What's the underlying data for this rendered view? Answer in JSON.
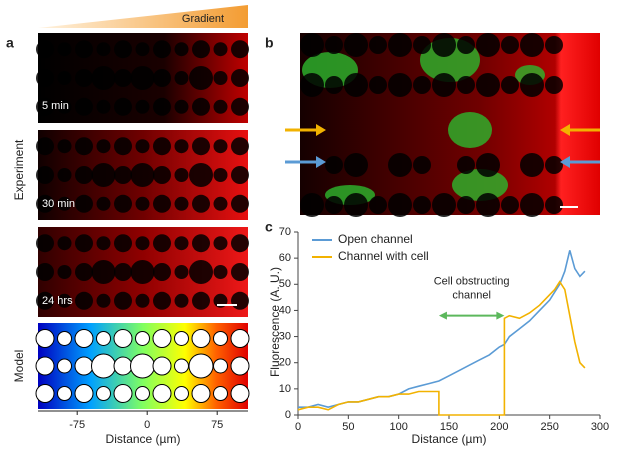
{
  "figure": {
    "panel_a": {
      "label": "a",
      "gradient_label": "Gradient",
      "experiment_label": "Experiment",
      "times": [
        "5 min",
        "30 min",
        "24 hrs"
      ],
      "model_label": "Model",
      "axis": {
        "xlim": [
          -117,
          108
        ],
        "xticks": [
          -75,
          0,
          75
        ],
        "xlabel": "Distance (µm)"
      }
    },
    "panel_b": {
      "label": "b"
    },
    "panel_c": {
      "label": "c"
    }
  },
  "chart_data": {
    "type": "line",
    "xlabel": "Distance (µm)",
    "ylabel": "Fluorescence (A. U.)",
    "x": [
      0,
      10,
      20,
      30,
      40,
      50,
      60,
      70,
      80,
      90,
      100,
      110,
      120,
      130,
      140,
      140,
      150,
      160,
      170,
      180,
      190,
      200,
      205,
      205,
      210,
      220,
      230,
      240,
      250,
      255,
      260,
      265,
      270,
      275,
      280,
      285
    ],
    "series": [
      {
        "name": "Open channel",
        "color": "#5b9bd5",
        "values": [
          3,
          3,
          4,
          3,
          4,
          5,
          5,
          6,
          7,
          7,
          8,
          10,
          11,
          12,
          13,
          13,
          15,
          17,
          19,
          21,
          23,
          26,
          27,
          27,
          30,
          33,
          36,
          40,
          44,
          47,
          50,
          55,
          63,
          56,
          53,
          55
        ]
      },
      {
        "name": "Channel with cell",
        "color": "#f2b200",
        "values": [
          2,
          3,
          3,
          2,
          4,
          5,
          5,
          6,
          7,
          7,
          8,
          8,
          9,
          9,
          9,
          0,
          0,
          0,
          0,
          0,
          0,
          0,
          0,
          37,
          38,
          37,
          39,
          42,
          46,
          48,
          51,
          48,
          38,
          28,
          20,
          18
        ]
      }
    ],
    "xlim": [
      0,
      300
    ],
    "xticks": [
      0,
      50,
      100,
      150,
      200,
      250,
      300
    ],
    "ylim": [
      0,
      70
    ],
    "yticks": [
      0,
      10,
      20,
      30,
      40,
      50,
      60,
      70
    ],
    "annotation": {
      "lines": [
        "Cell obstructing",
        "channel"
      ],
      "x_from": 140,
      "x_to": 205,
      "y": 38,
      "color": "#5cb85c"
    },
    "legend": "upper left"
  }
}
